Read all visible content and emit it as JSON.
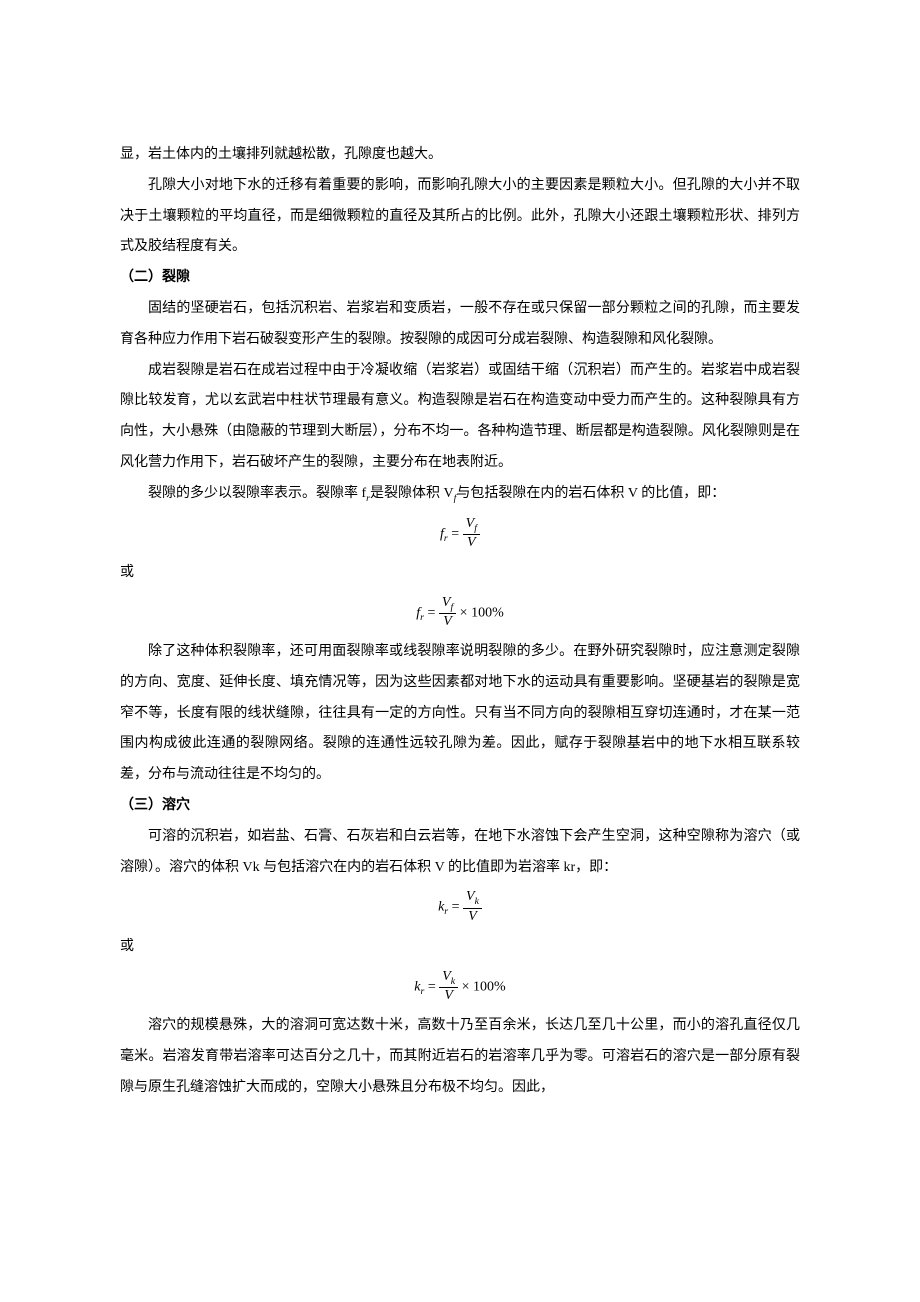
{
  "para1": "显，岩土体内的土壤排列就越松散，孔隙度也越大。",
  "para2": "孔隙大小对地下水的迁移有着重要的影响，而影响孔隙大小的主要因素是颗粒大小。但孔隙的大小并不取决于土壤颗粒的平均直径，而是细微颗粒的直径及其所占的比例。此外，孔隙大小还跟土壤颗粒形状、排列方式及胶结程度有关。",
  "sec2_title": "（二）裂隙",
  "sec2_p1": "固结的坚硬岩石，包括沉积岩、岩浆岩和变质岩，一般不存在或只保留一部分颗粒之间的孔隙，而主要发育各种应力作用下岩石破裂变形产生的裂隙。按裂隙的成因可分成岩裂隙、构造裂隙和风化裂隙。",
  "sec2_p2": "成岩裂隙是岩石在成岩过程中由于冷凝收缩（岩浆岩）或固结干缩（沉积岩）而产生的。岩浆岩中成岩裂隙比较发育，尤以玄武岩中柱状节理最有意义。构造裂隙是岩石在构造变动中受力而产生的。这种裂隙具有方向性，大小悬殊（由隐蔽的节理到大断层），分布不均一。各种构造节理、断层都是构造裂隙。风化裂隙则是在风化营力作用下，岩石破坏产生的裂隙，主要分布在地表附近。",
  "sec2_p3a": "裂隙的多少以裂隙率表示。裂隙率 f",
  "sec2_p3b": "是裂隙体积 V",
  "sec2_p3c": "与包括裂隙在内的岩石体积 V 的比值，即：",
  "or": "或",
  "sec2_p4": "除了这种体积裂隙率，还可用面裂隙率或线裂隙率说明裂隙的多少。在野外研究裂隙时，应注意测定裂隙的方向、宽度、延伸长度、填充情况等，因为这些因素都对地下水的运动具有重要影响。坚硬基岩的裂隙是宽窄不等，长度有限的线状缝隙，往往具有一定的方向性。只有当不同方向的裂隙相互穿切连通时，才在某一范围内构成彼此连通的裂隙网络。裂隙的连通性远较孔隙为差。因此，赋存于裂隙基岩中的地下水相互联系较差，分布与流动往往是不均匀的。",
  "sec3_title": "（三）溶穴",
  "sec3_p1": "可溶的沉积岩，如岩盐、石膏、石灰岩和白云岩等，在地下水溶蚀下会产生空洞，这种空隙称为溶穴（或溶隙）。溶穴的体积 Vk 与包括溶穴在内的岩石体积 V 的比值即为岩溶率 kr，即：",
  "sec3_p2": "溶穴的规模悬殊，大的溶洞可宽达数十米，高数十乃至百余米，长达几至几十公里，而小的溶孔直径仅几毫米。岩溶发育带岩溶率可达百分之几十，而其附近岩石的岩溶率几乎为零。可溶岩石的溶穴是一部分原有裂隙与原生孔缝溶蚀扩大而成的，空隙大小悬殊且分布极不均匀。因此，",
  "formula": {
    "f_sym": "f",
    "k_sym": "k",
    "sub_r": "r",
    "sub_f": "f",
    "sub_k": "k",
    "eq": " = ",
    "V": "V",
    "times100": " × 100%"
  }
}
